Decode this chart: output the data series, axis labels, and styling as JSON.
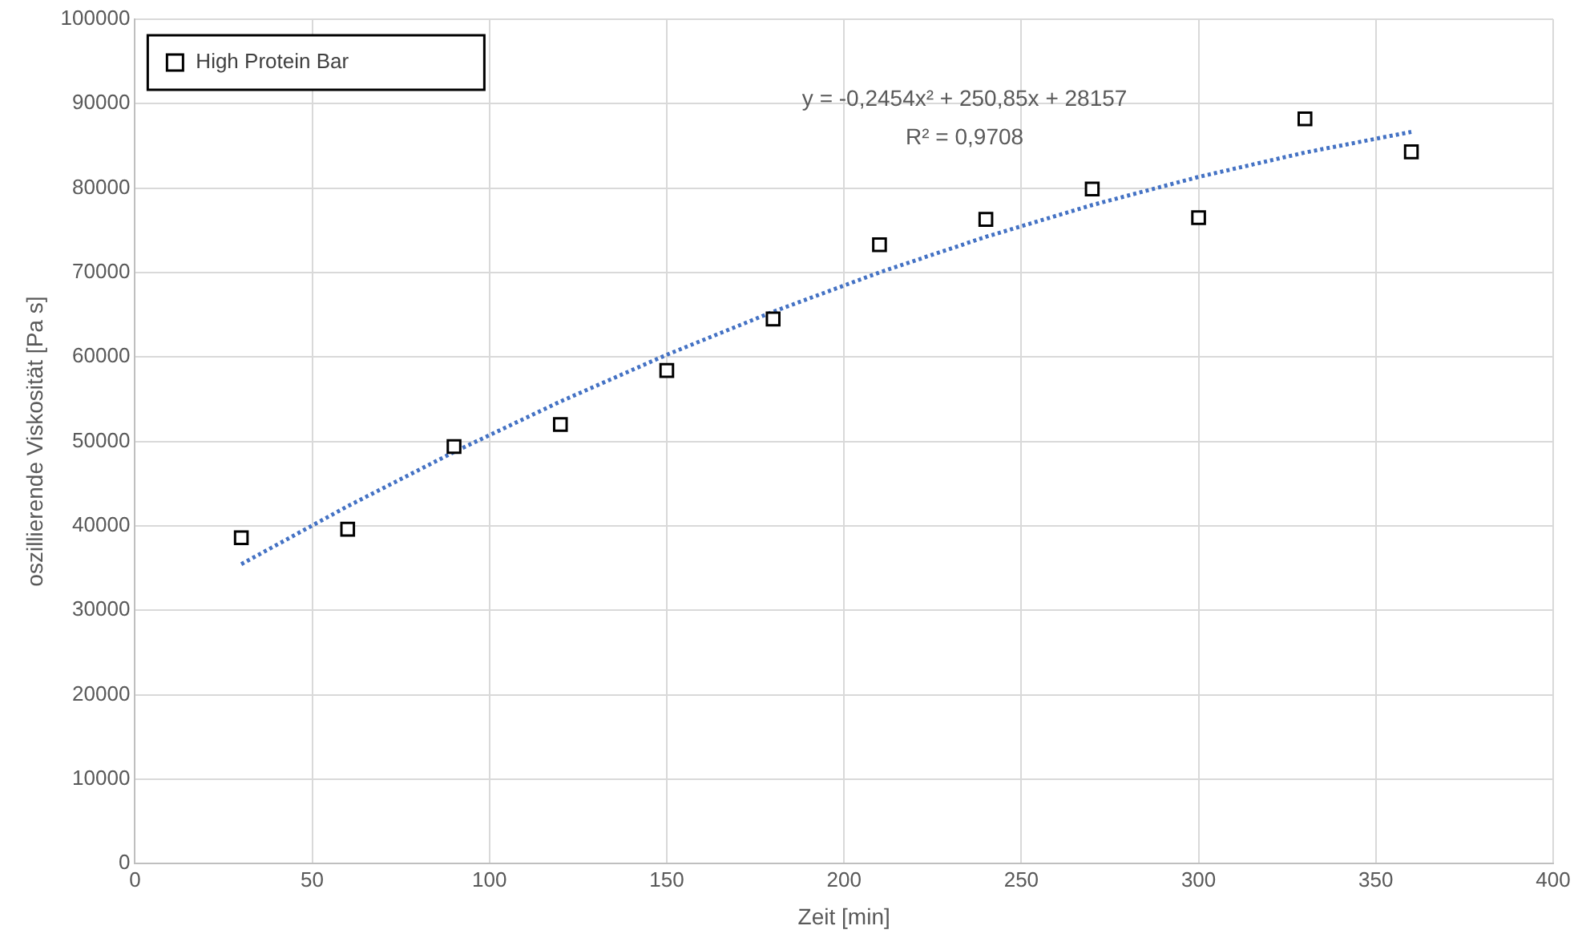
{
  "chart_data": {
    "type": "scatter",
    "xlabel": "Zeit [min]",
    "ylabel": "oszillierende Viskosität [Pa s]",
    "xlim": [
      0,
      400
    ],
    "xticks": [
      0,
      50,
      100,
      150,
      200,
      250,
      300,
      350,
      400
    ],
    "ylim": [
      0,
      100000
    ],
    "yticks": [
      0,
      10000,
      20000,
      30000,
      40000,
      50000,
      60000,
      70000,
      80000,
      90000,
      100000
    ],
    "grid": true,
    "legend": "top left",
    "marker": "square",
    "annotations": [
      "y = -0,2454x² + 250,85x + 28157",
      "R² = 0,9708"
    ],
    "series": [
      {
        "name": "High Protein Bar",
        "color": "#000000",
        "x": [
          30,
          60,
          90,
          120,
          150,
          180,
          210,
          240,
          270,
          300,
          330,
          360
        ],
        "values": [
          38600,
          39600,
          49400,
          52000,
          58400,
          64500,
          73300,
          76300,
          79900,
          76500,
          88200,
          84300
        ]
      },
      {
        "type": "line",
        "color": "#4472c4",
        "line_style": "dotted",
        "marker": "none",
        "x": [
          30,
          60,
          90,
          120,
          150,
          180,
          210,
          240,
          270,
          300,
          330,
          360
        ],
        "values": [
          35462,
          42325,
          48746,
          54725,
          60263,
          65359,
          70013,
          74226,
          77997,
          81326,
          84213,
          86661
        ]
      }
    ]
  }
}
